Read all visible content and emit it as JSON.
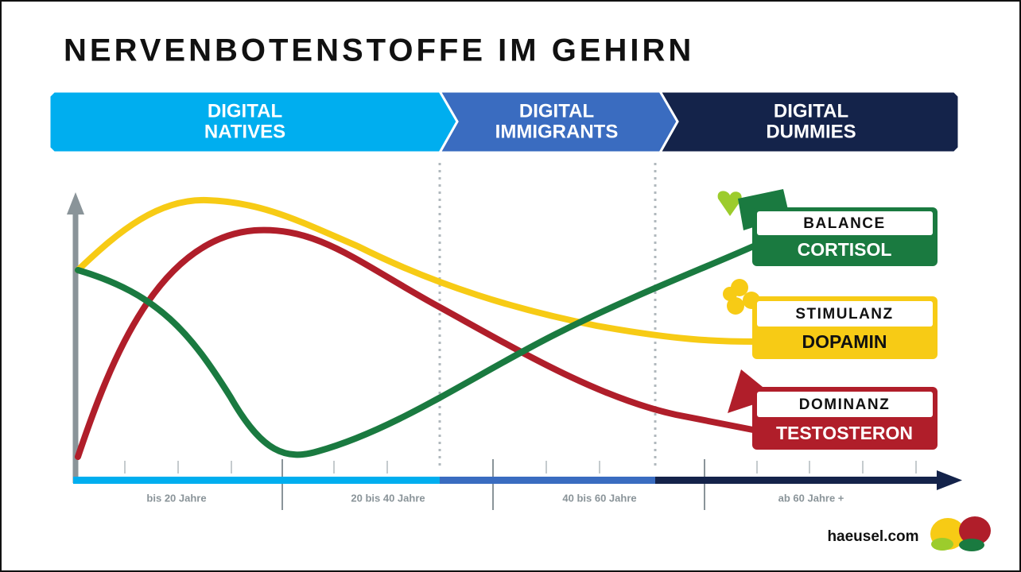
{
  "title": "NERVENBOTENSTOFFE IM GEHIRN",
  "bands": [
    {
      "lines": [
        "DIGITAL",
        "NATIVES"
      ]
    },
    {
      "lines": [
        "DIGITAL",
        "IMMIGRANTS"
      ]
    },
    {
      "lines": [
        "DIGITAL",
        "DUMMIES"
      ]
    }
  ],
  "age_labels": [
    "bis 20 Jahre",
    "20 bis 40 Jahre",
    "40 bis 60 Jahre",
    "ab 60 Jahre +"
  ],
  "legend": [
    {
      "top": "BALANCE",
      "bottom": "CORTISOL"
    },
    {
      "top": "STIMULANZ",
      "bottom": "DOPAMIN"
    },
    {
      "top": "DOMINANZ",
      "bottom": "TESTOSTERON"
    }
  ],
  "logo": "haeusel.com"
}
